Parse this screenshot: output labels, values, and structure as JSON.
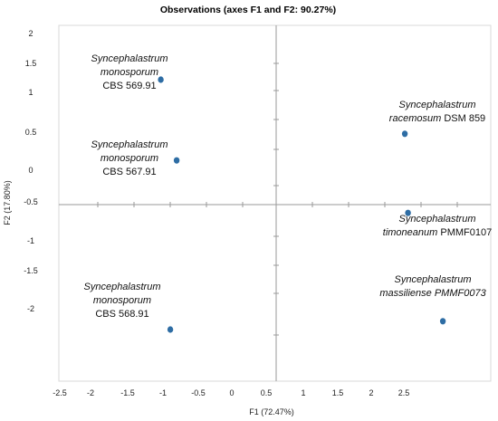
{
  "chart_data": {
    "type": "scatter",
    "title": "Observations (axes F1 and F2: 90.27%)",
    "xlabel": "F1 (72.47%)",
    "ylabel": "F2 (17.80%)",
    "x_ticks": [
      "-2.5",
      "-2",
      "-1.5",
      "-1",
      "-0.5",
      "0",
      "0.5",
      "1",
      "1.5",
      "2",
      "2.5"
    ],
    "y_ticks": [
      "2",
      "1.5",
      "1",
      "0.5",
      "0",
      "-0.5",
      "-1",
      "-1.5",
      "-2"
    ],
    "marker_color": "#2e6da4",
    "grid": false,
    "legend": "none",
    "points": [
      {
        "x": -0.95,
        "y": 1.0,
        "label_lines": [
          {
            "italic": "Syncephalastrum"
          },
          {
            "italic": "monosporum"
          },
          {
            "normal": "CBS 569.91"
          }
        ]
      },
      {
        "x": -0.7,
        "y": 0.03,
        "label_lines": [
          {
            "italic": "Syncephalastrum"
          },
          {
            "italic": "monosporum"
          },
          {
            "normal": "CBS 567.91"
          }
        ]
      },
      {
        "x": -0.8,
        "y": -2.0,
        "label_lines": [
          {
            "italic": "Syncephalastrum"
          },
          {
            "italic": "monosporum"
          },
          {
            "normal": "CBS 568.91"
          }
        ]
      },
      {
        "x": 2.9,
        "y": 0.35,
        "label_lines": [
          {
            "italic": "Syncephalastrum"
          },
          {
            "italic": "racemosum",
            "normal": " DSM 859"
          }
        ]
      },
      {
        "x": 2.95,
        "y": -0.6,
        "label_lines": [
          {
            "italic": "Syncephalastrum"
          },
          {
            "italic": "timoneanum",
            "normal": " PMMF0107"
          }
        ]
      },
      {
        "x": 3.5,
        "y": -1.9,
        "label_lines": [
          {
            "italic": "Syncephalastrum"
          },
          {
            "italic": "massiliense PMMF0073"
          }
        ]
      }
    ]
  }
}
